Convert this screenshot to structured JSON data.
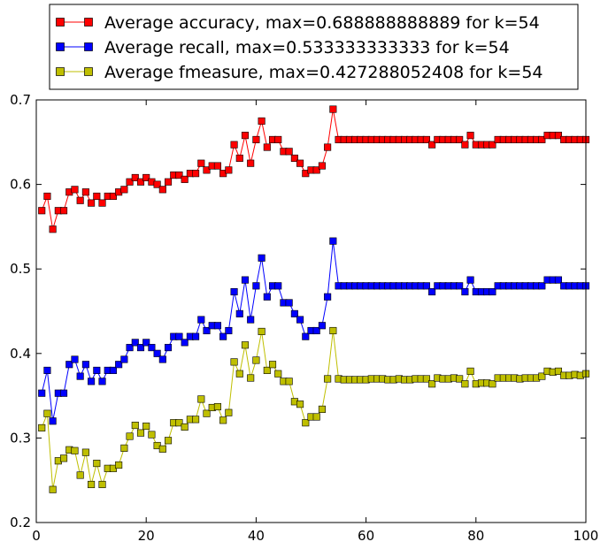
{
  "chart_data": {
    "type": "line",
    "title": "",
    "xlabel": "",
    "ylabel": "",
    "xlim": [
      0,
      100
    ],
    "ylim": [
      0.2,
      0.7
    ],
    "xticks": [
      0,
      20,
      40,
      60,
      80,
      100
    ],
    "yticks": [
      0.2,
      0.3,
      0.4,
      0.5,
      0.6,
      0.7
    ],
    "x_tick_labels": [
      "0",
      "20",
      "40",
      "60",
      "80",
      "100"
    ],
    "y_tick_labels": [
      "0.2",
      "0.3",
      "0.4",
      "0.5",
      "0.6",
      "0.7"
    ],
    "grid": false,
    "legend_position": "top, outside plot area",
    "x": [
      1,
      2,
      3,
      4,
      5,
      6,
      7,
      8,
      9,
      10,
      11,
      12,
      13,
      14,
      15,
      16,
      17,
      18,
      19,
      20,
      21,
      22,
      23,
      24,
      25,
      26,
      27,
      28,
      29,
      30,
      31,
      32,
      33,
      34,
      35,
      36,
      37,
      38,
      39,
      40,
      41,
      42,
      43,
      44,
      45,
      46,
      47,
      48,
      49,
      50,
      51,
      52,
      53,
      54,
      55,
      56,
      57,
      58,
      59,
      60,
      61,
      62,
      63,
      64,
      65,
      66,
      67,
      68,
      69,
      70,
      71,
      72,
      73,
      74,
      75,
      76,
      77,
      78,
      79,
      80,
      81,
      82,
      83,
      84,
      85,
      86,
      87,
      88,
      89,
      90,
      91,
      92,
      93,
      94,
      95,
      96,
      97,
      98,
      99,
      100
    ],
    "series": [
      {
        "name": "Average accuracy, max=0.688888888889 for k=54",
        "color": "#ff0000",
        "marker": "square",
        "values": [
          0.569,
          0.586,
          0.547,
          0.569,
          0.569,
          0.591,
          0.594,
          0.581,
          0.591,
          0.578,
          0.586,
          0.578,
          0.586,
          0.586,
          0.591,
          0.594,
          0.603,
          0.608,
          0.603,
          0.608,
          0.603,
          0.6,
          0.594,
          0.603,
          0.611,
          0.611,
          0.606,
          0.613,
          0.613,
          0.625,
          0.617,
          0.622,
          0.622,
          0.613,
          0.617,
          0.647,
          0.631,
          0.658,
          0.625,
          0.653,
          0.675,
          0.644,
          0.653,
          0.653,
          0.639,
          0.639,
          0.631,
          0.625,
          0.613,
          0.617,
          0.617,
          0.622,
          0.644,
          0.689,
          0.653,
          0.653,
          0.653,
          0.653,
          0.653,
          0.653,
          0.653,
          0.653,
          0.653,
          0.653,
          0.653,
          0.653,
          0.653,
          0.653,
          0.653,
          0.653,
          0.653,
          0.647,
          0.653,
          0.653,
          0.653,
          0.653,
          0.653,
          0.647,
          0.658,
          0.647,
          0.647,
          0.647,
          0.647,
          0.653,
          0.653,
          0.653,
          0.653,
          0.653,
          0.653,
          0.653,
          0.653,
          0.653,
          0.658,
          0.658,
          0.658,
          0.653,
          0.653,
          0.653,
          0.653,
          0.653
        ]
      },
      {
        "name": "Average recall, max=0.533333333333 for k=54",
        "color": "#0000ff",
        "marker": "square",
        "values": [
          0.353,
          0.38,
          0.32,
          0.353,
          0.353,
          0.387,
          0.393,
          0.373,
          0.387,
          0.367,
          0.38,
          0.367,
          0.38,
          0.38,
          0.387,
          0.393,
          0.407,
          0.413,
          0.407,
          0.413,
          0.407,
          0.4,
          0.393,
          0.407,
          0.42,
          0.42,
          0.413,
          0.42,
          0.42,
          0.44,
          0.427,
          0.433,
          0.433,
          0.42,
          0.427,
          0.473,
          0.447,
          0.487,
          0.44,
          0.48,
          0.513,
          0.467,
          0.48,
          0.48,
          0.46,
          0.46,
          0.447,
          0.44,
          0.42,
          0.427,
          0.427,
          0.433,
          0.467,
          0.533,
          0.48,
          0.48,
          0.48,
          0.48,
          0.48,
          0.48,
          0.48,
          0.48,
          0.48,
          0.48,
          0.48,
          0.48,
          0.48,
          0.48,
          0.48,
          0.48,
          0.48,
          0.473,
          0.48,
          0.48,
          0.48,
          0.48,
          0.48,
          0.473,
          0.487,
          0.473,
          0.473,
          0.473,
          0.473,
          0.48,
          0.48,
          0.48,
          0.48,
          0.48,
          0.48,
          0.48,
          0.48,
          0.48,
          0.487,
          0.487,
          0.487,
          0.48,
          0.48,
          0.48,
          0.48,
          0.48
        ]
      },
      {
        "name": "Average fmeasure, max=0.427288052408 for k=54",
        "color": "#bfbf00",
        "marker": "square",
        "values": [
          0.312,
          0.329,
          0.239,
          0.273,
          0.276,
          0.286,
          0.285,
          0.256,
          0.283,
          0.245,
          0.27,
          0.245,
          0.264,
          0.264,
          0.268,
          0.288,
          0.302,
          0.315,
          0.306,
          0.314,
          0.304,
          0.291,
          0.287,
          0.297,
          0.318,
          0.318,
          0.313,
          0.322,
          0.322,
          0.346,
          0.329,
          0.336,
          0.337,
          0.321,
          0.33,
          0.39,
          0.376,
          0.41,
          0.371,
          0.392,
          0.426,
          0.38,
          0.387,
          0.376,
          0.367,
          0.367,
          0.343,
          0.34,
          0.318,
          0.325,
          0.325,
          0.334,
          0.37,
          0.427,
          0.37,
          0.369,
          0.369,
          0.369,
          0.369,
          0.369,
          0.37,
          0.37,
          0.37,
          0.369,
          0.369,
          0.37,
          0.369,
          0.369,
          0.37,
          0.37,
          0.37,
          0.364,
          0.371,
          0.37,
          0.37,
          0.371,
          0.37,
          0.364,
          0.379,
          0.364,
          0.365,
          0.365,
          0.364,
          0.371,
          0.371,
          0.371,
          0.371,
          0.37,
          0.371,
          0.371,
          0.371,
          0.373,
          0.379,
          0.378,
          0.379,
          0.374,
          0.374,
          0.375,
          0.374,
          0.376
        ]
      }
    ]
  }
}
